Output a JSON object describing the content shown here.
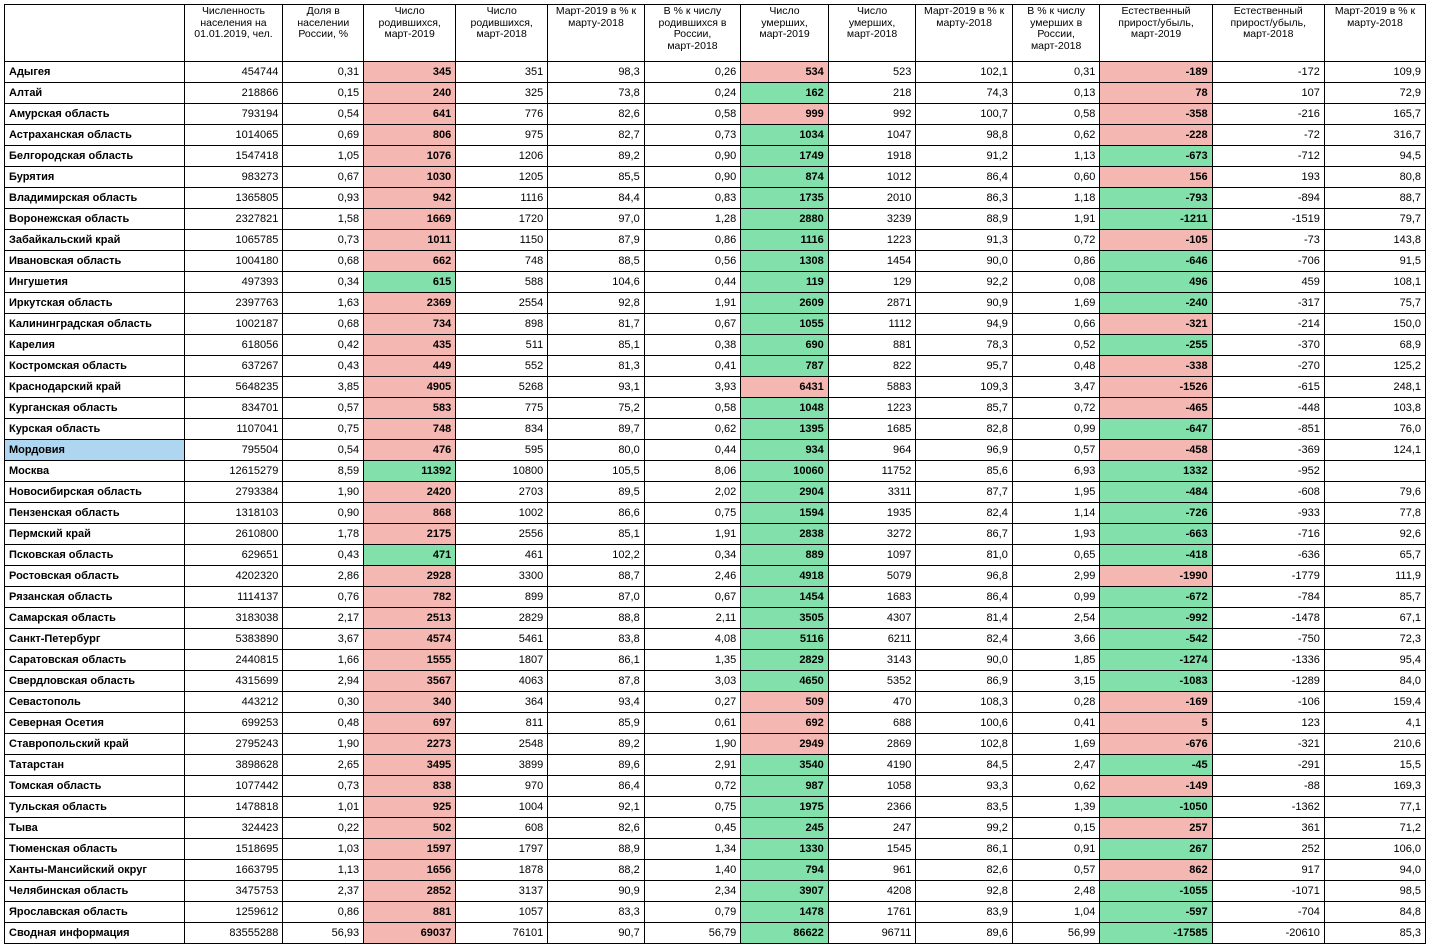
{
  "colors": {
    "pink": "#f5b7b1",
    "green": "#82e0aa",
    "blue": "#aed6f1",
    "border": "#000000",
    "bg": "#ffffff"
  },
  "headers": [
    "",
    "Численность населения на 01.01.2019, чел.",
    "Доля в населении России, %",
    "Число родившихся, март-2019",
    "Число родившихся, март-2018",
    "Март-2019 в % к марту-2018",
    "В % к числу родившихся в России, март-2018",
    "Число умерших, март-2019",
    "Число умерших, март-2018",
    "Март-2019 в % к марту-2018",
    "В % к числу умерших в России, март-2018",
    "Естественный прирост/убыль, март-2019",
    "Естественный прирост/убыль, март-2018",
    "Март-2019 в % к марту-2018"
  ],
  "rows": [
    {
      "region": "Адыгея",
      "pop": "454744",
      "share": "0,31",
      "b19": "345",
      "b18": "351",
      "bp": "98,3",
      "bshare": "0,26",
      "d19": "534",
      "d18": "523",
      "dp": "102,1",
      "dshare": "0,31",
      "inc19": "-189",
      "inc18": "-172",
      "incp": "109,9",
      "c3": "pink",
      "c7": "pink",
      "c11": "pink"
    },
    {
      "region": "Алтай",
      "pop": "218866",
      "share": "0,15",
      "b19": "240",
      "b18": "325",
      "bp": "73,8",
      "bshare": "0,24",
      "d19": "162",
      "d18": "218",
      "dp": "74,3",
      "dshare": "0,13",
      "inc19": "78",
      "inc18": "107",
      "incp": "72,9",
      "c3": "pink",
      "c7": "green",
      "c11": "pink"
    },
    {
      "region": "Амурская область",
      "pop": "793194",
      "share": "0,54",
      "b19": "641",
      "b18": "776",
      "bp": "82,6",
      "bshare": "0,58",
      "d19": "999",
      "d18": "992",
      "dp": "100,7",
      "dshare": "0,58",
      "inc19": "-358",
      "inc18": "-216",
      "incp": "165,7",
      "c3": "pink",
      "c7": "pink",
      "c11": "pink"
    },
    {
      "region": "Астраханская область",
      "pop": "1014065",
      "share": "0,69",
      "b19": "806",
      "b18": "975",
      "bp": "82,7",
      "bshare": "0,73",
      "d19": "1034",
      "d18": "1047",
      "dp": "98,8",
      "dshare": "0,62",
      "inc19": "-228",
      "inc18": "-72",
      "incp": "316,7",
      "c3": "pink",
      "c7": "green",
      "c11": "pink"
    },
    {
      "region": "Белгородская область",
      "pop": "1547418",
      "share": "1,05",
      "b19": "1076",
      "b18": "1206",
      "bp": "89,2",
      "bshare": "0,90",
      "d19": "1749",
      "d18": "1918",
      "dp": "91,2",
      "dshare": "1,13",
      "inc19": "-673",
      "inc18": "-712",
      "incp": "94,5",
      "c3": "pink",
      "c7": "green",
      "c11": "green"
    },
    {
      "region": "Бурятия",
      "pop": "983273",
      "share": "0,67",
      "b19": "1030",
      "b18": "1205",
      "bp": "85,5",
      "bshare": "0,90",
      "d19": "874",
      "d18": "1012",
      "dp": "86,4",
      "dshare": "0,60",
      "inc19": "156",
      "inc18": "193",
      "incp": "80,8",
      "c3": "pink",
      "c7": "green",
      "c11": "pink"
    },
    {
      "region": "Владимирская область",
      "pop": "1365805",
      "share": "0,93",
      "b19": "942",
      "b18": "1116",
      "bp": "84,4",
      "bshare": "0,83",
      "d19": "1735",
      "d18": "2010",
      "dp": "86,3",
      "dshare": "1,18",
      "inc19": "-793",
      "inc18": "-894",
      "incp": "88,7",
      "c3": "pink",
      "c7": "green",
      "c11": "green"
    },
    {
      "region": "Воронежская область",
      "pop": "2327821",
      "share": "1,58",
      "b19": "1669",
      "b18": "1720",
      "bp": "97,0",
      "bshare": "1,28",
      "d19": "2880",
      "d18": "3239",
      "dp": "88,9",
      "dshare": "1,91",
      "inc19": "-1211",
      "inc18": "-1519",
      "incp": "79,7",
      "c3": "pink",
      "c7": "green",
      "c11": "green"
    },
    {
      "region": "Забайкальский край",
      "pop": "1065785",
      "share": "0,73",
      "b19": "1011",
      "b18": "1150",
      "bp": "87,9",
      "bshare": "0,86",
      "d19": "1116",
      "d18": "1223",
      "dp": "91,3",
      "dshare": "0,72",
      "inc19": "-105",
      "inc18": "-73",
      "incp": "143,8",
      "c3": "pink",
      "c7": "green",
      "c11": "pink"
    },
    {
      "region": "Ивановская область",
      "pop": "1004180",
      "share": "0,68",
      "b19": "662",
      "b18": "748",
      "bp": "88,5",
      "bshare": "0,56",
      "d19": "1308",
      "d18": "1454",
      "dp": "90,0",
      "dshare": "0,86",
      "inc19": "-646",
      "inc18": "-706",
      "incp": "91,5",
      "c3": "pink",
      "c7": "green",
      "c11": "green"
    },
    {
      "region": "Ингушетия",
      "pop": "497393",
      "share": "0,34",
      "b19": "615",
      "b18": "588",
      "bp": "104,6",
      "bshare": "0,44",
      "d19": "119",
      "d18": "129",
      "dp": "92,2",
      "dshare": "0,08",
      "inc19": "496",
      "inc18": "459",
      "incp": "108,1",
      "c3": "green",
      "c7": "green",
      "c11": "green"
    },
    {
      "region": "Иркутская область",
      "pop": "2397763",
      "share": "1,63",
      "b19": "2369",
      "b18": "2554",
      "bp": "92,8",
      "bshare": "1,91",
      "d19": "2609",
      "d18": "2871",
      "dp": "90,9",
      "dshare": "1,69",
      "inc19": "-240",
      "inc18": "-317",
      "incp": "75,7",
      "c3": "pink",
      "c7": "green",
      "c11": "green"
    },
    {
      "region": "Калининградская область",
      "pop": "1002187",
      "share": "0,68",
      "b19": "734",
      "b18": "898",
      "bp": "81,7",
      "bshare": "0,67",
      "d19": "1055",
      "d18": "1112",
      "dp": "94,9",
      "dshare": "0,66",
      "inc19": "-321",
      "inc18": "-214",
      "incp": "150,0",
      "c3": "pink",
      "c7": "green",
      "c11": "pink"
    },
    {
      "region": "Карелия",
      "pop": "618056",
      "share": "0,42",
      "b19": "435",
      "b18": "511",
      "bp": "85,1",
      "bshare": "0,38",
      "d19": "690",
      "d18": "881",
      "dp": "78,3",
      "dshare": "0,52",
      "inc19": "-255",
      "inc18": "-370",
      "incp": "68,9",
      "c3": "pink",
      "c7": "green",
      "c11": "green"
    },
    {
      "region": "Костромская область",
      "pop": "637267",
      "share": "0,43",
      "b19": "449",
      "b18": "552",
      "bp": "81,3",
      "bshare": "0,41",
      "d19": "787",
      "d18": "822",
      "dp": "95,7",
      "dshare": "0,48",
      "inc19": "-338",
      "inc18": "-270",
      "incp": "125,2",
      "c3": "pink",
      "c7": "green",
      "c11": "pink"
    },
    {
      "region": "Краснодарский край",
      "pop": "5648235",
      "share": "3,85",
      "b19": "4905",
      "b18": "5268",
      "bp": "93,1",
      "bshare": "3,93",
      "d19": "6431",
      "d18": "5883",
      "dp": "109,3",
      "dshare": "3,47",
      "inc19": "-1526",
      "inc18": "-615",
      "incp": "248,1",
      "c3": "pink",
      "c7": "pink",
      "c11": "pink"
    },
    {
      "region": "Курганская область",
      "pop": "834701",
      "share": "0,57",
      "b19": "583",
      "b18": "775",
      "bp": "75,2",
      "bshare": "0,58",
      "d19": "1048",
      "d18": "1223",
      "dp": "85,7",
      "dshare": "0,72",
      "inc19": "-465",
      "inc18": "-448",
      "incp": "103,8",
      "c3": "pink",
      "c7": "green",
      "c11": "pink"
    },
    {
      "region": "Курская область",
      "pop": "1107041",
      "share": "0,75",
      "b19": "748",
      "b18": "834",
      "bp": "89,7",
      "bshare": "0,62",
      "d19": "1395",
      "d18": "1685",
      "dp": "82,8",
      "dshare": "0,99",
      "inc19": "-647",
      "inc18": "-851",
      "incp": "76,0",
      "c3": "pink",
      "c7": "green",
      "c11": "green"
    },
    {
      "region": "Мордовия",
      "pop": "795504",
      "share": "0,54",
      "b19": "476",
      "b18": "595",
      "bp": "80,0",
      "bshare": "0,44",
      "d19": "934",
      "d18": "964",
      "dp": "96,9",
      "dshare": "0,57",
      "inc19": "-458",
      "inc18": "-369",
      "incp": "124,1",
      "c3": "pink",
      "c7": "green",
      "c11": "pink",
      "row_bg": "blue"
    },
    {
      "region": "Москва",
      "pop": "12615279",
      "share": "8,59",
      "b19": "11392",
      "b18": "10800",
      "bp": "105,5",
      "bshare": "8,06",
      "d19": "10060",
      "d18": "11752",
      "dp": "85,6",
      "dshare": "6,93",
      "inc19": "1332",
      "inc18": "-952",
      "incp": "",
      "c3": "green",
      "c7": "green",
      "c11": "green"
    },
    {
      "region": "Новосибирская область",
      "pop": "2793384",
      "share": "1,90",
      "b19": "2420",
      "b18": "2703",
      "bp": "89,5",
      "bshare": "2,02",
      "d19": "2904",
      "d18": "3311",
      "dp": "87,7",
      "dshare": "1,95",
      "inc19": "-484",
      "inc18": "-608",
      "incp": "79,6",
      "c3": "pink",
      "c7": "green",
      "c11": "green"
    },
    {
      "region": "Пензенская область",
      "pop": "1318103",
      "share": "0,90",
      "b19": "868",
      "b18": "1002",
      "bp": "86,6",
      "bshare": "0,75",
      "d19": "1594",
      "d18": "1935",
      "dp": "82,4",
      "dshare": "1,14",
      "inc19": "-726",
      "inc18": "-933",
      "incp": "77,8",
      "c3": "pink",
      "c7": "green",
      "c11": "green"
    },
    {
      "region": "Пермский край",
      "pop": "2610800",
      "share": "1,78",
      "b19": "2175",
      "b18": "2556",
      "bp": "85,1",
      "bshare": "1,91",
      "d19": "2838",
      "d18": "3272",
      "dp": "86,7",
      "dshare": "1,93",
      "inc19": "-663",
      "inc18": "-716",
      "incp": "92,6",
      "c3": "pink",
      "c7": "green",
      "c11": "green"
    },
    {
      "region": "Псковская область",
      "pop": "629651",
      "share": "0,43",
      "b19": "471",
      "b18": "461",
      "bp": "102,2",
      "bshare": "0,34",
      "d19": "889",
      "d18": "1097",
      "dp": "81,0",
      "dshare": "0,65",
      "inc19": "-418",
      "inc18": "-636",
      "incp": "65,7",
      "c3": "green",
      "c7": "green",
      "c11": "green"
    },
    {
      "region": "Ростовская область",
      "pop": "4202320",
      "share": "2,86",
      "b19": "2928",
      "b18": "3300",
      "bp": "88,7",
      "bshare": "2,46",
      "d19": "4918",
      "d18": "5079",
      "dp": "96,8",
      "dshare": "2,99",
      "inc19": "-1990",
      "inc18": "-1779",
      "incp": "111,9",
      "c3": "pink",
      "c7": "green",
      "c11": "pink"
    },
    {
      "region": "Рязанская область",
      "pop": "1114137",
      "share": "0,76",
      "b19": "782",
      "b18": "899",
      "bp": "87,0",
      "bshare": "0,67",
      "d19": "1454",
      "d18": "1683",
      "dp": "86,4",
      "dshare": "0,99",
      "inc19": "-672",
      "inc18": "-784",
      "incp": "85,7",
      "c3": "pink",
      "c7": "green",
      "c11": "green"
    },
    {
      "region": "Самарская область",
      "pop": "3183038",
      "share": "2,17",
      "b19": "2513",
      "b18": "2829",
      "bp": "88,8",
      "bshare": "2,11",
      "d19": "3505",
      "d18": "4307",
      "dp": "81,4",
      "dshare": "2,54",
      "inc19": "-992",
      "inc18": "-1478",
      "incp": "67,1",
      "c3": "pink",
      "c7": "green",
      "c11": "green"
    },
    {
      "region": "Санкт-Петербург",
      "pop": "5383890",
      "share": "3,67",
      "b19": "4574",
      "b18": "5461",
      "bp": "83,8",
      "bshare": "4,08",
      "d19": "5116",
      "d18": "6211",
      "dp": "82,4",
      "dshare": "3,66",
      "inc19": "-542",
      "inc18": "-750",
      "incp": "72,3",
      "c3": "pink",
      "c7": "green",
      "c11": "green"
    },
    {
      "region": "Саратовская область",
      "pop": "2440815",
      "share": "1,66",
      "b19": "1555",
      "b18": "1807",
      "bp": "86,1",
      "bshare": "1,35",
      "d19": "2829",
      "d18": "3143",
      "dp": "90,0",
      "dshare": "1,85",
      "inc19": "-1274",
      "inc18": "-1336",
      "incp": "95,4",
      "c3": "pink",
      "c7": "green",
      "c11": "green"
    },
    {
      "region": "Свердловская область",
      "pop": "4315699",
      "share": "2,94",
      "b19": "3567",
      "b18": "4063",
      "bp": "87,8",
      "bshare": "3,03",
      "d19": "4650",
      "d18": "5352",
      "dp": "86,9",
      "dshare": "3,15",
      "inc19": "-1083",
      "inc18": "-1289",
      "incp": "84,0",
      "c3": "pink",
      "c7": "green",
      "c11": "green"
    },
    {
      "region": "Севастополь",
      "pop": "443212",
      "share": "0,30",
      "b19": "340",
      "b18": "364",
      "bp": "93,4",
      "bshare": "0,27",
      "d19": "509",
      "d18": "470",
      "dp": "108,3",
      "dshare": "0,28",
      "inc19": "-169",
      "inc18": "-106",
      "incp": "159,4",
      "c3": "pink",
      "c7": "pink",
      "c11": "pink"
    },
    {
      "region": "Северная Осетия",
      "pop": "699253",
      "share": "0,48",
      "b19": "697",
      "b18": "811",
      "bp": "85,9",
      "bshare": "0,61",
      "d19": "692",
      "d18": "688",
      "dp": "100,6",
      "dshare": "0,41",
      "inc19": "5",
      "inc18": "123",
      "incp": "4,1",
      "c3": "pink",
      "c7": "pink",
      "c11": "pink"
    },
    {
      "region": "Ставропольский край",
      "pop": "2795243",
      "share": "1,90",
      "b19": "2273",
      "b18": "2548",
      "bp": "89,2",
      "bshare": "1,90",
      "d19": "2949",
      "d18": "2869",
      "dp": "102,8",
      "dshare": "1,69",
      "inc19": "-676",
      "inc18": "-321",
      "incp": "210,6",
      "c3": "pink",
      "c7": "pink",
      "c11": "pink"
    },
    {
      "region": "Татарстан",
      "pop": "3898628",
      "share": "2,65",
      "b19": "3495",
      "b18": "3899",
      "bp": "89,6",
      "bshare": "2,91",
      "d19": "3540",
      "d18": "4190",
      "dp": "84,5",
      "dshare": "2,47",
      "inc19": "-45",
      "inc18": "-291",
      "incp": "15,5",
      "c3": "pink",
      "c7": "green",
      "c11": "green"
    },
    {
      "region": "Томская область",
      "pop": "1077442",
      "share": "0,73",
      "b19": "838",
      "b18": "970",
      "bp": "86,4",
      "bshare": "0,72",
      "d19": "987",
      "d18": "1058",
      "dp": "93,3",
      "dshare": "0,62",
      "inc19": "-149",
      "inc18": "-88",
      "incp": "169,3",
      "c3": "pink",
      "c7": "green",
      "c11": "pink"
    },
    {
      "region": "Тульская область",
      "pop": "1478818",
      "share": "1,01",
      "b19": "925",
      "b18": "1004",
      "bp": "92,1",
      "bshare": "0,75",
      "d19": "1975",
      "d18": "2366",
      "dp": "83,5",
      "dshare": "1,39",
      "inc19": "-1050",
      "inc18": "-1362",
      "incp": "77,1",
      "c3": "pink",
      "c7": "green",
      "c11": "green"
    },
    {
      "region": "Тыва",
      "pop": "324423",
      "share": "0,22",
      "b19": "502",
      "b18": "608",
      "bp": "82,6",
      "bshare": "0,45",
      "d19": "245",
      "d18": "247",
      "dp": "99,2",
      "dshare": "0,15",
      "inc19": "257",
      "inc18": "361",
      "incp": "71,2",
      "c3": "pink",
      "c7": "green",
      "c11": "pink"
    },
    {
      "region": "Тюменская область",
      "pop": "1518695",
      "share": "1,03",
      "b19": "1597",
      "b18": "1797",
      "bp": "88,9",
      "bshare": "1,34",
      "d19": "1330",
      "d18": "1545",
      "dp": "86,1",
      "dshare": "0,91",
      "inc19": "267",
      "inc18": "252",
      "incp": "106,0",
      "c3": "pink",
      "c7": "green",
      "c11": "green"
    },
    {
      "region": "Ханты-Мансийский округ",
      "pop": "1663795",
      "share": "1,13",
      "b19": "1656",
      "b18": "1878",
      "bp": "88,2",
      "bshare": "1,40",
      "d19": "794",
      "d18": "961",
      "dp": "82,6",
      "dshare": "0,57",
      "inc19": "862",
      "inc18": "917",
      "incp": "94,0",
      "c3": "pink",
      "c7": "green",
      "c11": "pink"
    },
    {
      "region": "Челябинская область",
      "pop": "3475753",
      "share": "2,37",
      "b19": "2852",
      "b18": "3137",
      "bp": "90,9",
      "bshare": "2,34",
      "d19": "3907",
      "d18": "4208",
      "dp": "92,8",
      "dshare": "2,48",
      "inc19": "-1055",
      "inc18": "-1071",
      "incp": "98,5",
      "c3": "pink",
      "c7": "green",
      "c11": "green"
    },
    {
      "region": "Ярославская область",
      "pop": "1259612",
      "share": "0,86",
      "b19": "881",
      "b18": "1057",
      "bp": "83,3",
      "bshare": "0,79",
      "d19": "1478",
      "d18": "1761",
      "dp": "83,9",
      "dshare": "1,04",
      "inc19": "-597",
      "inc18": "-704",
      "incp": "84,8",
      "c3": "pink",
      "c7": "green",
      "c11": "green"
    },
    {
      "region": "Сводная информация",
      "pop": "83555288",
      "share": "56,93",
      "b19": "69037",
      "b18": "76101",
      "bp": "90,7",
      "bshare": "56,79",
      "d19": "86622",
      "d18": "96711",
      "dp": "89,6",
      "dshare": "56,99",
      "inc19": "-17585",
      "inc18": "-20610",
      "incp": "85,3",
      "c3": "pink",
      "c7": "green",
      "c11": "green"
    }
  ]
}
